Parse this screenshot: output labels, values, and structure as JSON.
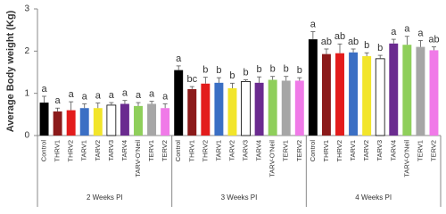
{
  "chart_data": {
    "type": "bar",
    "y_label": "Average Body weight (Kg)",
    "groups": [
      "2 Weeks PI",
      "3 Weeks PI",
      "4 Weeks PI"
    ],
    "series": [
      {
        "name": "Control",
        "color": "#000000",
        "values": [
          0.78,
          1.55,
          2.28
        ],
        "errors": [
          0.15,
          0.1,
          0.18
        ],
        "significance": [
          "a",
          "a",
          "a"
        ]
      },
      {
        "name": "THRV1",
        "color": "#8b1a1a",
        "values": [
          0.57,
          1.1,
          1.93
        ],
        "errors": [
          0.08,
          0.06,
          0.12
        ],
        "significance": [
          "a",
          "bc",
          "ab"
        ]
      },
      {
        "name": "THRV2",
        "color": "#e31c1c",
        "values": [
          0.6,
          1.23,
          1.95
        ],
        "errors": [
          0.2,
          0.15,
          0.22
        ],
        "significance": [
          "a",
          "b",
          "ab"
        ]
      },
      {
        "name": "TARV1",
        "color": "#3b6fc4",
        "values": [
          0.65,
          1.25,
          1.97
        ],
        "errors": [
          0.1,
          0.12,
          0.08
        ],
        "significance": [
          "a",
          "b",
          "ab"
        ]
      },
      {
        "name": "TARV2",
        "color": "#f2e52a",
        "values": [
          0.65,
          1.12,
          1.88
        ],
        "errors": [
          0.12,
          0.12,
          0.08
        ],
        "significance": [
          "a",
          "b",
          "b"
        ]
      },
      {
        "name": "TARV3",
        "color": "#ffffff",
        "values": [
          0.72,
          1.28,
          1.82
        ],
        "errors": [
          0.06,
          0.04,
          0.08
        ],
        "significance": [
          "a",
          "b",
          "b"
        ]
      },
      {
        "name": "TARV4",
        "color": "#6a2b8f",
        "values": [
          0.75,
          1.25,
          2.18
        ],
        "errors": [
          0.08,
          0.14,
          0.1
        ],
        "significance": [
          "a",
          "b",
          "a"
        ]
      },
      {
        "name": "TARV-O'Neil",
        "color": "#8fcf5b",
        "values": [
          0.7,
          1.32,
          2.15
        ],
        "errors": [
          0.08,
          0.08,
          0.2
        ],
        "significance": [
          "a",
          "b",
          "a"
        ]
      },
      {
        "name": "TERV1",
        "color": "#a6a6a6",
        "values": [
          0.75,
          1.3,
          2.1
        ],
        "errors": [
          0.06,
          0.1,
          0.15
        ],
        "significance": [
          "a",
          "b",
          "a"
        ]
      },
      {
        "name": "TERV2",
        "color": "#f07ae8",
        "values": [
          0.65,
          1.3,
          2.02
        ],
        "errors": [
          0.1,
          0.07,
          0.08
        ],
        "significance": [
          "a",
          "b",
          "ab"
        ]
      }
    ],
    "ylim": [
      0,
      3
    ],
    "yticks": [
      0,
      1,
      2,
      3
    ]
  }
}
